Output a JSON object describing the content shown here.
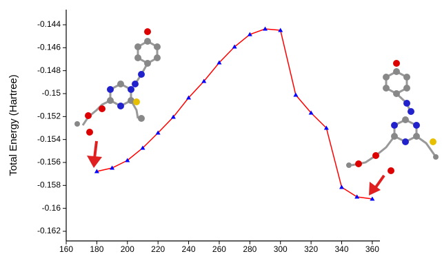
{
  "chart_data": {
    "type": "line",
    "y_label": "Total Energy (Hartree)",
    "x": [
      180,
      190,
      200,
      210,
      220,
      230,
      240,
      250,
      260,
      270,
      280,
      290,
      300,
      310,
      320,
      330,
      340,
      350,
      360
    ],
    "series": [
      {
        "color": "#ff0000",
        "marker_color": "#0000ff",
        "values": [
          -0.15678,
          -0.15648,
          -0.15582,
          -0.15474,
          -0.15342,
          -0.15204,
          -0.15036,
          -0.14892,
          -0.1473,
          -0.14592,
          -0.14484,
          -0.14436,
          -0.14448,
          -0.15012,
          -0.15168,
          -0.153,
          -0.15816,
          -0.159,
          -0.15918
        ]
      }
    ],
    "xlim": [
      160,
      365
    ],
    "xticks": [
      160,
      180,
      200,
      220,
      240,
      260,
      280,
      300,
      320,
      340,
      360
    ],
    "ylim": [
      -0.16284,
      -0.14268
    ],
    "yticks": [
      -0.162,
      -0.16,
      -0.158,
      -0.156,
      -0.154,
      -0.152,
      -0.15,
      -0.148,
      -0.146,
      -0.144
    ]
  }
}
